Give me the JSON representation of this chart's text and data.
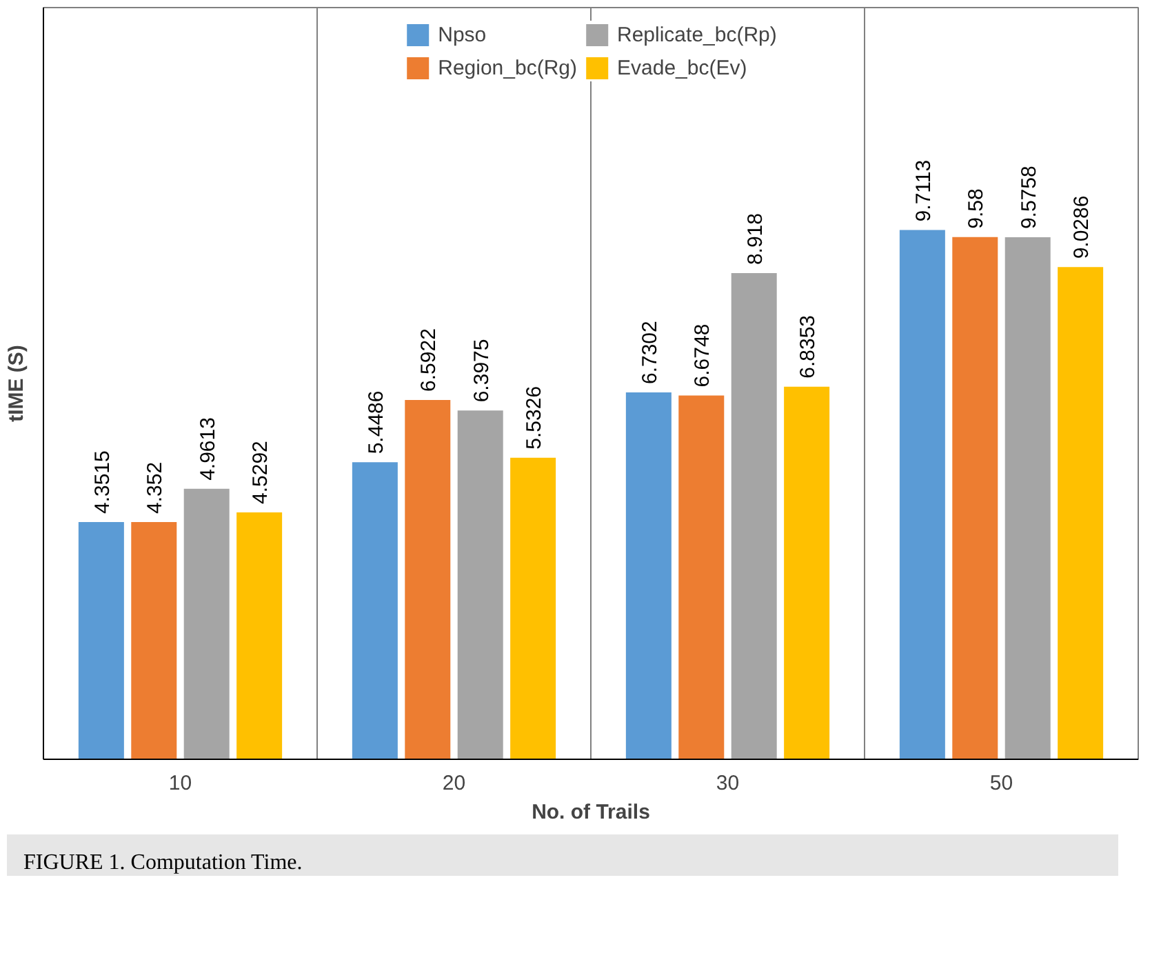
{
  "chart_data": {
    "type": "bar",
    "xlabel": "No. of Trails",
    "ylabel": "tIME (S)",
    "categories": [
      "10",
      "20",
      "30",
      "50"
    ],
    "series": [
      {
        "name": "Npso",
        "color": "#5b9bd5",
        "values": [
          4.3515,
          5.4486,
          6.7302,
          9.7113
        ]
      },
      {
        "name": "Region_bc(Rg)",
        "color": "#ed7d31",
        "values": [
          4.352,
          6.5922,
          6.6748,
          9.58
        ]
      },
      {
        "name": "Replicate_bc(Rp)",
        "color": "#a5a5a5",
        "values": [
          4.9613,
          6.3975,
          8.918,
          9.5758
        ]
      },
      {
        "name": "Evade_bc(Ev)",
        "color": "#ffc000",
        "values": [
          4.5292,
          5.5326,
          6.8353,
          9.0286
        ]
      }
    ],
    "data_labels": true,
    "grid": "x",
    "legend": "top",
    "annotations": [
      "FIGURE 1. Computation Time."
    ]
  }
}
